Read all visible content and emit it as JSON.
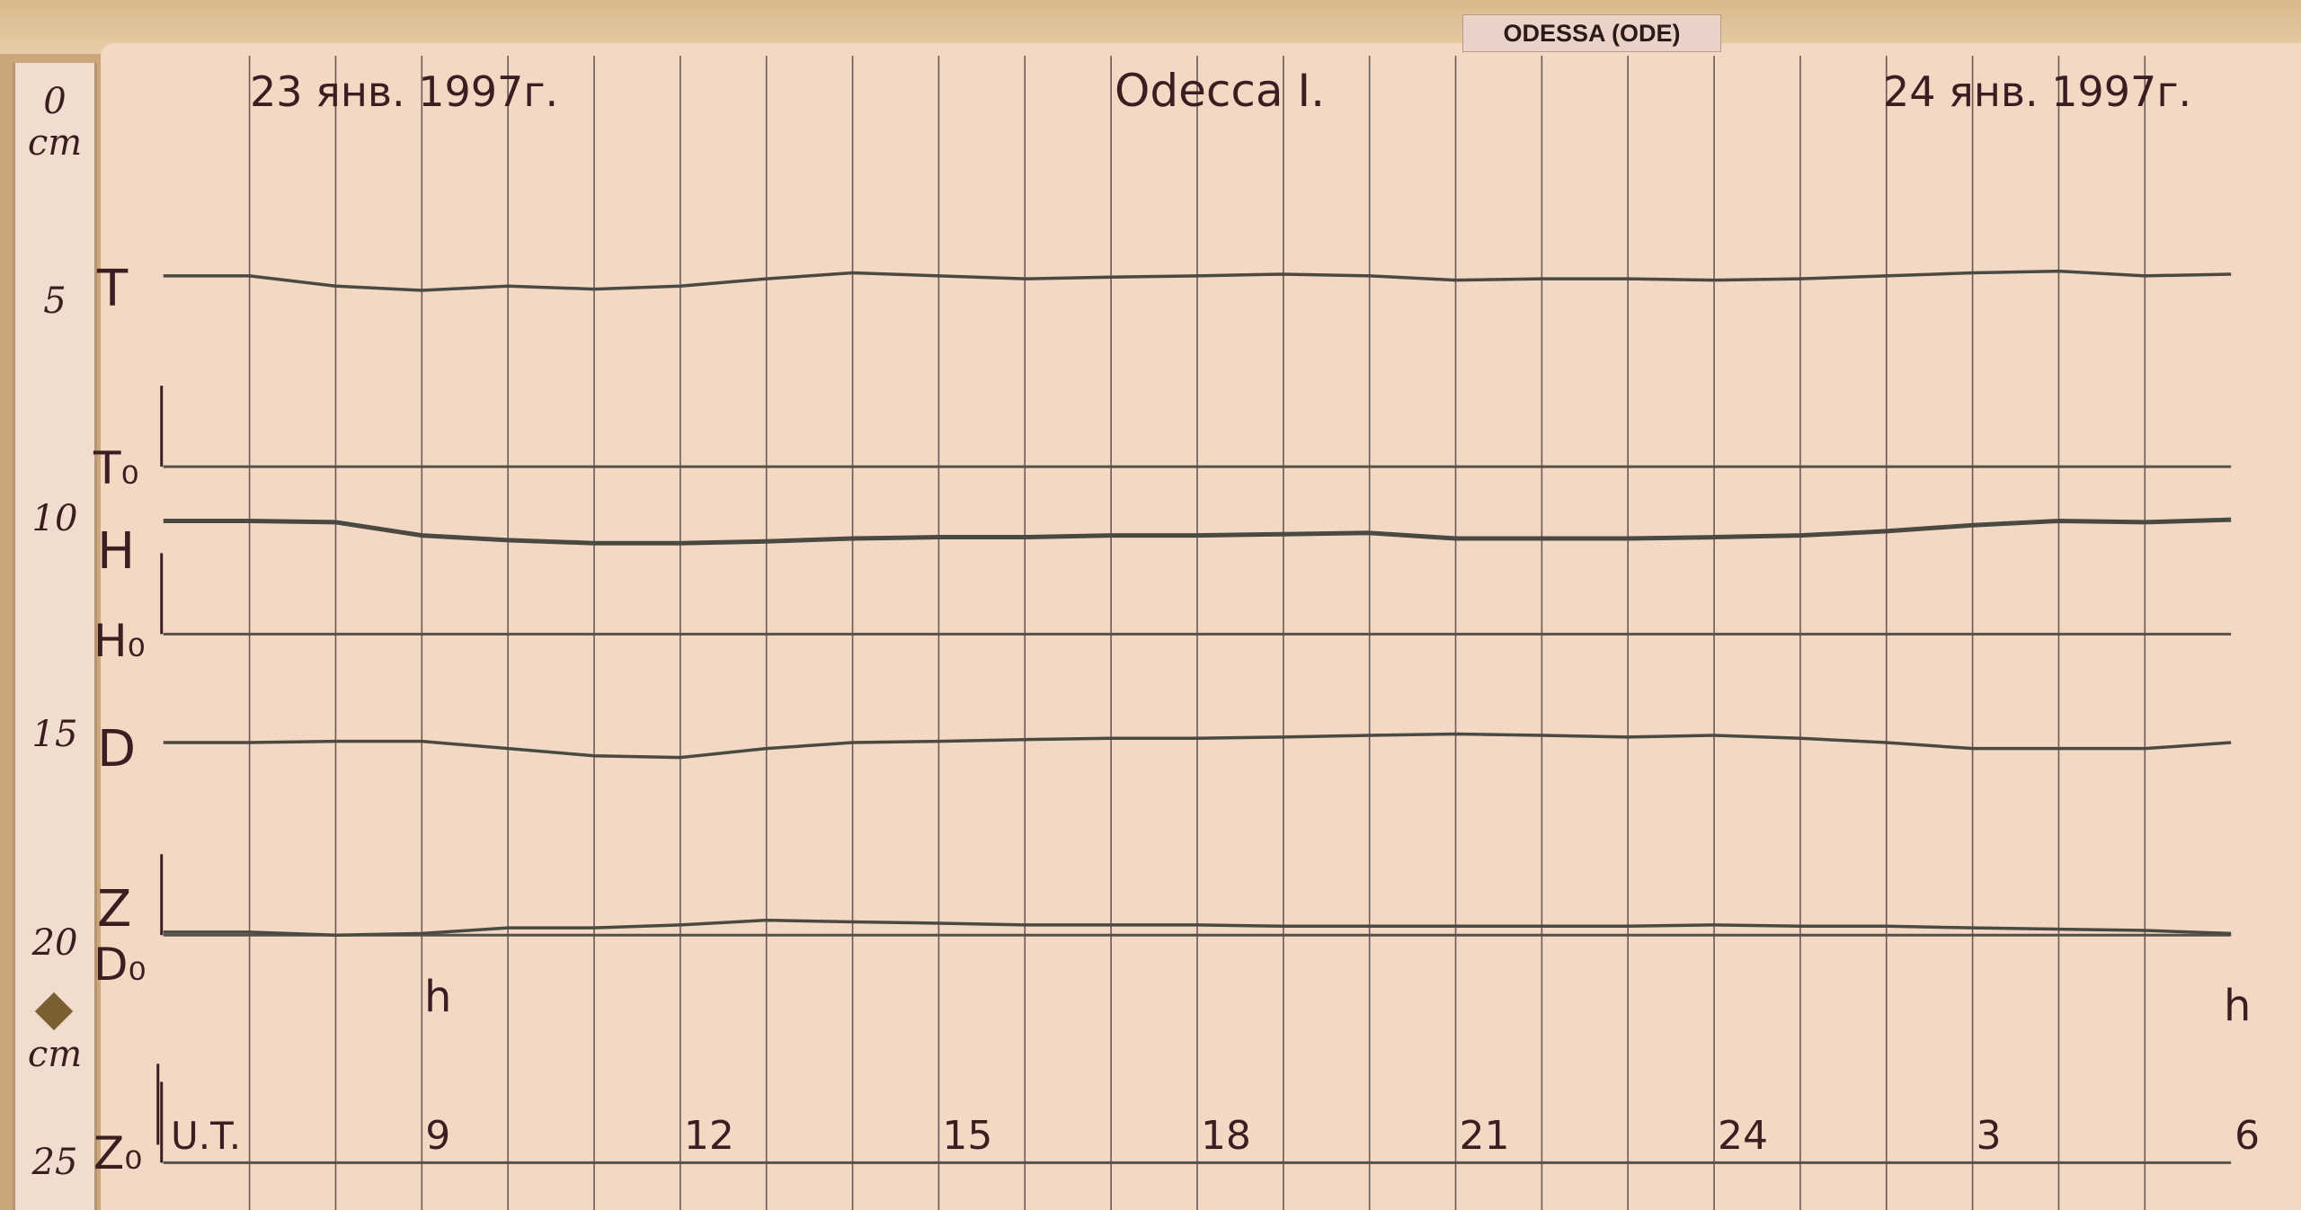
{
  "station_label": "ODESSA (ODE)",
  "ruler": {
    "unit_label": "cm",
    "ticks": [
      "0",
      "5",
      "10",
      "15",
      "20",
      "25"
    ],
    "unit_label_bottom": "cm"
  },
  "chart_data": {
    "type": "line",
    "title_left": "23 янв. 1997г.",
    "title_center": "Odecca I.",
    "title_right": "24 янв. 1997г.",
    "xlabel": "U.T.",
    "hour_unit_label": "h",
    "x_unit": "hours UT",
    "xlim": [
      6,
      30
    ],
    "ylim_cm": [
      0,
      25
    ],
    "x_tick_labels": [
      {
        "h": 9,
        "label": "9"
      },
      {
        "h": 12,
        "label": "12"
      },
      {
        "h": 15,
        "label": "15"
      },
      {
        "h": 18,
        "label": "18"
      },
      {
        "h": 21,
        "label": "21"
      },
      {
        "h": 24,
        "label": "24"
      },
      {
        "h": 27,
        "label": "3"
      },
      {
        "h": 30,
        "label": "6"
      }
    ],
    "grid": true,
    "hours": [
      7,
      8,
      9,
      10,
      11,
      12,
      13,
      14,
      15,
      16,
      17,
      18,
      19,
      20,
      21,
      22,
      23,
      24,
      25,
      26,
      27,
      28,
      29,
      30
    ],
    "series": [
      {
        "name": "T",
        "baseline_label": "T₀",
        "baseline_cm": 8.53,
        "values_cm": [
          4.06,
          4.3,
          4.4,
          4.3,
          4.37,
          4.3,
          4.13,
          3.99,
          4.06,
          4.13,
          4.09,
          4.06,
          4.02,
          4.06,
          4.16,
          4.13,
          4.13,
          4.16,
          4.13,
          4.06,
          3.99,
          3.95,
          4.06,
          4.02
        ]
      },
      {
        "name": "H",
        "baseline_label": "H₀",
        "baseline_cm": 12.45,
        "values_cm": [
          9.8,
          9.83,
          10.14,
          10.25,
          10.32,
          10.32,
          10.28,
          10.21,
          10.18,
          10.18,
          10.14,
          10.14,
          10.11,
          10.08,
          10.21,
          10.21,
          10.21,
          10.18,
          10.14,
          10.04,
          9.9,
          9.8,
          9.83,
          9.77
        ]
      },
      {
        "name": "D",
        "baseline_label": "D₀",
        "baseline_cm": 19.5,
        "values_cm": [
          14.99,
          14.96,
          14.96,
          15.13,
          15.3,
          15.34,
          15.13,
          14.99,
          14.96,
          14.92,
          14.89,
          14.89,
          14.86,
          14.82,
          14.79,
          14.82,
          14.86,
          14.82,
          14.89,
          14.99,
          15.13,
          15.13,
          15.13,
          14.99
        ]
      },
      {
        "name": "Z",
        "baseline_label": "Z₀",
        "baseline_cm": 24.83,
        "values_cm": [
          19.43,
          19.5,
          19.46,
          19.33,
          19.33,
          19.26,
          19.15,
          19.19,
          19.22,
          19.26,
          19.26,
          19.26,
          19.29,
          19.29,
          19.29,
          19.29,
          19.29,
          19.26,
          19.29,
          19.29,
          19.33,
          19.36,
          19.39,
          19.46
        ]
      }
    ]
  },
  "colors": {
    "paper": "#f3d9c4",
    "trace": "#4a4a42",
    "grid": "#6b5a55",
    "ink": "#3a1e22"
  }
}
